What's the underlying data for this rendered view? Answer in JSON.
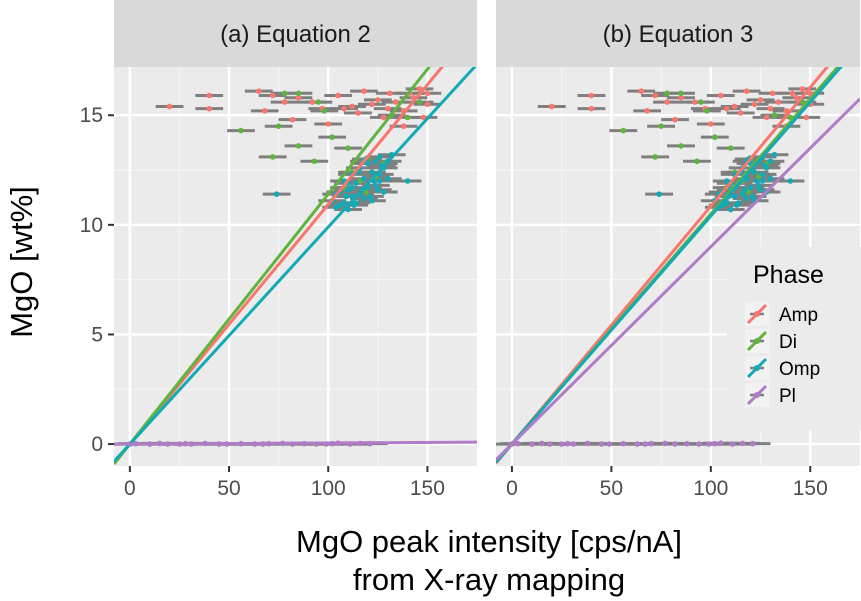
{
  "chart_data": {
    "type": "scatter",
    "xlabel_line1": "MgO peak intensity [cps/nA]",
    "xlabel_line2": "from X-ray mapping",
    "ylabel": "MgO [wt%]",
    "xlim": [
      -8,
      175
    ],
    "ylim": [
      -1,
      17.2
    ],
    "x_ticks": [
      0,
      50,
      100,
      150
    ],
    "y_ticks": [
      0,
      5,
      10,
      15
    ],
    "grid": true,
    "legend_position": "right",
    "legend": {
      "title": "Phase",
      "entries": [
        {
          "name": "Amp",
          "color": "#F8766D"
        },
        {
          "name": "Di",
          "color": "#7CAE00"
        },
        {
          "name": "Omp",
          "color": "#00BFC4"
        },
        {
          "name": "Pl",
          "color": "#C77CFF"
        }
      ]
    },
    "colors": {
      "Amp": "#F8766D",
      "Di": "#5FB33F",
      "Omp": "#12AAB5",
      "Pl": "#B07CC6",
      "errorbar": "#7f7f7f",
      "panel": "#ebebeb",
      "strip": "#d9d9d9"
    },
    "panels": [
      {
        "title": "(a) Equation 2",
        "lines": [
          {
            "phase": "Amp",
            "slope": 0.1093,
            "intercept": 0.0
          },
          {
            "phase": "Di",
            "slope": 0.114,
            "intercept": 0.0
          },
          {
            "phase": "Omp",
            "slope": 0.099,
            "intercept": 0.0
          },
          {
            "phase": "Pl",
            "slope": 0.0005,
            "intercept": 0.0
          }
        ]
      },
      {
        "title": "(b) Equation 3",
        "lines": [
          {
            "phase": "Amp",
            "slope": 0.1085,
            "intercept": 0.0
          },
          {
            "phase": "Di",
            "slope": 0.105,
            "intercept": 0.0
          },
          {
            "phase": "Omp",
            "slope": 0.104,
            "intercept": 0.0
          },
          {
            "phase": "Pl",
            "slope": 0.09,
            "intercept": 0.0
          }
        ]
      }
    ],
    "series": [
      {
        "name": "Amp",
        "points": [
          [
            20,
            15.4
          ],
          [
            40,
            15.9
          ],
          [
            40,
            15.3
          ],
          [
            65,
            16.1
          ],
          [
            72,
            15.9
          ],
          [
            78,
            15.6
          ],
          [
            85,
            15.8
          ],
          [
            92,
            15.6
          ],
          [
            97,
            15.3
          ],
          [
            105,
            15.9
          ],
          [
            112,
            15.4
          ],
          [
            118,
            16.1
          ],
          [
            125,
            15.7
          ],
          [
            131,
            16.0
          ],
          [
            138,
            15.2
          ],
          [
            143,
            15.8
          ],
          [
            146,
            16.2
          ],
          [
            150,
            15.5
          ],
          [
            148,
            14.9
          ],
          [
            138,
            14.5
          ],
          [
            128,
            14.9
          ],
          [
            115,
            15.1
          ],
          [
            100,
            14.6
          ],
          [
            82,
            14.8
          ],
          [
            68,
            15.2
          ],
          [
            130,
            15.3
          ],
          [
            141,
            16.0
          ],
          [
            122,
            15.5
          ],
          [
            108,
            15.3
          ],
          [
            150,
            16.0
          ],
          [
            134,
            15.6
          ]
        ]
      },
      {
        "name": "Di",
        "points": [
          [
            78,
            16.0
          ],
          [
            85,
            16.0
          ],
          [
            95,
            15.6
          ],
          [
            98,
            15.2
          ],
          [
            56,
            14.3
          ],
          [
            75,
            14.5
          ],
          [
            85,
            13.6
          ],
          [
            102,
            14.0
          ],
          [
            72,
            13.1
          ],
          [
            93,
            12.9
          ],
          [
            110,
            13.5
          ],
          [
            120,
            13.0
          ],
          [
            128,
            12.8
          ],
          [
            140,
            14.9
          ],
          [
            146,
            15.6
          ],
          [
            112,
            12.4
          ],
          [
            116,
            12.0
          ],
          [
            124,
            12.2
          ],
          [
            132,
            15.0
          ],
          [
            108,
            11.7
          ],
          [
            119,
            11.5
          ]
        ]
      },
      {
        "name": "Omp",
        "points": [
          [
            74,
            11.4
          ],
          [
            140,
            12.0
          ],
          [
            102,
            11.1
          ],
          [
            104,
            10.8
          ],
          [
            106,
            11.5
          ],
          [
            108,
            11.0
          ],
          [
            108,
            12.0
          ],
          [
            110,
            11.6
          ],
          [
            110,
            10.7
          ],
          [
            112,
            11.3
          ],
          [
            112,
            12.3
          ],
          [
            114,
            11.9
          ],
          [
            114,
            11.0
          ],
          [
            116,
            12.6
          ],
          [
            116,
            11.4
          ],
          [
            118,
            12.1
          ],
          [
            118,
            11.2
          ],
          [
            120,
            12.8
          ],
          [
            120,
            11.7
          ],
          [
            122,
            12.4
          ],
          [
            122,
            11.1
          ],
          [
            124,
            12.9
          ],
          [
            124,
            11.8
          ],
          [
            126,
            12.3
          ],
          [
            126,
            13.1
          ],
          [
            128,
            12.6
          ],
          [
            128,
            11.5
          ],
          [
            130,
            12.9
          ],
          [
            130,
            12.1
          ],
          [
            132,
            13.2
          ],
          [
            106,
            10.9
          ],
          [
            110,
            11.9
          ],
          [
            112,
            11.7
          ],
          [
            115,
            12.4
          ],
          [
            117,
            11.6
          ],
          [
            119,
            13.0
          ],
          [
            121,
            11.3
          ],
          [
            123,
            12.0
          ],
          [
            125,
            11.6
          ],
          [
            127,
            12.7
          ],
          [
            104,
            11.4
          ],
          [
            109,
            11.3
          ],
          [
            113,
            10.9
          ],
          [
            118,
            12.9
          ],
          [
            126,
            12.0
          ]
        ]
      },
      {
        "name": "Pl",
        "points": [
          [
            0,
            0.0
          ],
          [
            3,
            0.02
          ],
          [
            10,
            0.0
          ],
          [
            15,
            0.03
          ],
          [
            19,
            0.0
          ],
          [
            25,
            0.0
          ],
          [
            28,
            0.02
          ],
          [
            31,
            0.0
          ],
          [
            38,
            0.03
          ],
          [
            45,
            0.0
          ],
          [
            49,
            0.0
          ],
          [
            56,
            0.02
          ],
          [
            63,
            0.0
          ],
          [
            67,
            0.0
          ],
          [
            70,
            0.02
          ],
          [
            77,
            0.03
          ],
          [
            82,
            0.0
          ],
          [
            88,
            0.02
          ],
          [
            94,
            0.0
          ],
          [
            99,
            0.0
          ],
          [
            102,
            0.02
          ],
          [
            105,
            0.04
          ],
          [
            111,
            0.0
          ],
          [
            116,
            0.03
          ],
          [
            121,
            0.02
          ]
        ]
      }
    ]
  }
}
